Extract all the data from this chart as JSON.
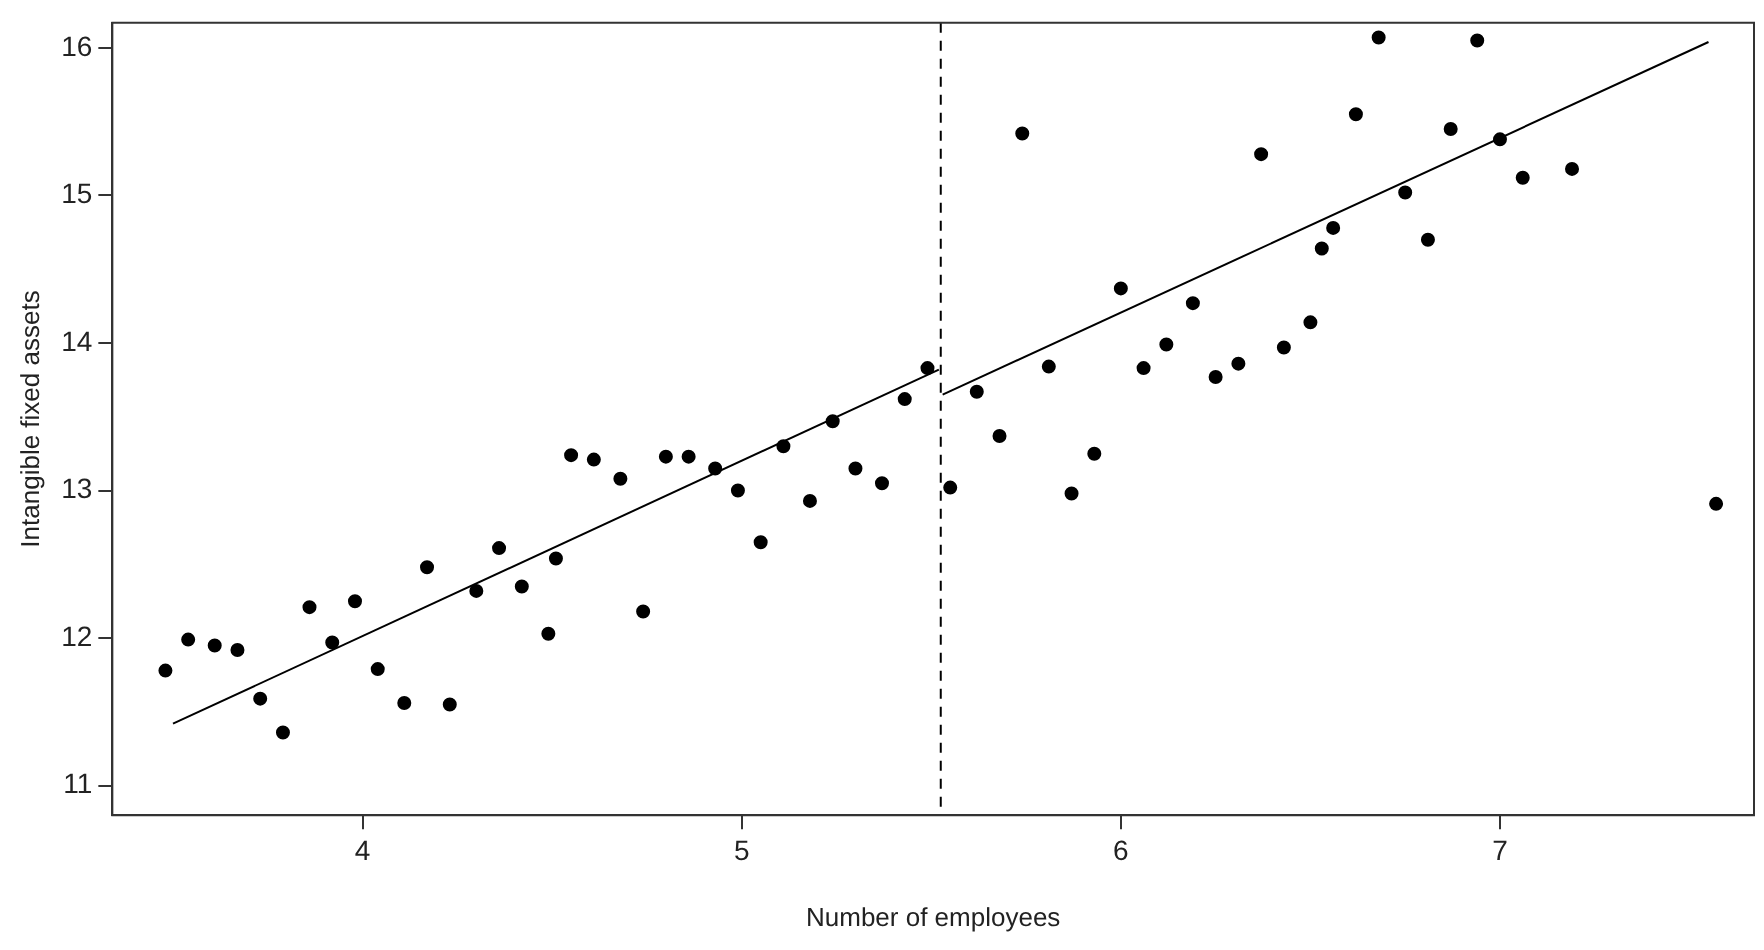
{
  "chart_data": {
    "type": "scatter",
    "xlabel": "Number of employees",
    "ylabel": "Intangible fixed assets",
    "xlim": [
      3.34,
      7.67
    ],
    "ylim": [
      10.8,
      16.17
    ],
    "xticks": [
      4,
      5,
      6,
      7
    ],
    "yticks": [
      11,
      12,
      13,
      14,
      15,
      16
    ],
    "grid": false,
    "legend": false,
    "marker": "circle",
    "series": [
      {
        "color": "#000000",
        "x": [
          3.48,
          3.54,
          3.61,
          3.67,
          3.73,
          3.79,
          3.86,
          3.92,
          3.98,
          4.04,
          4.11,
          4.17,
          4.23,
          4.3,
          4.36,
          4.42,
          4.49,
          4.51,
          4.55,
          4.61,
          4.68,
          4.74,
          4.8,
          4.86,
          4.93,
          4.99,
          5.05,
          5.11,
          5.18,
          5.24,
          5.3,
          5.37,
          5.43,
          5.49,
          5.55,
          5.62,
          5.68,
          5.74,
          5.81,
          5.87,
          5.93,
          6.0,
          6.06,
          6.12,
          6.19,
          6.25,
          6.31,
          6.37,
          6.43,
          6.5,
          6.53,
          6.56,
          6.62,
          6.68,
          6.75,
          6.81,
          6.87,
          6.94,
          7.0,
          7.06,
          7.19,
          7.57
        ],
        "values": [
          11.78,
          11.99,
          11.95,
          11.92,
          11.59,
          11.36,
          12.21,
          11.97,
          12.25,
          11.79,
          11.56,
          12.48,
          11.55,
          12.32,
          12.61,
          12.35,
          12.03,
          12.54,
          13.24,
          13.21,
          13.08,
          12.18,
          13.23,
          13.23,
          13.15,
          13.0,
          12.65,
          13.3,
          12.93,
          13.47,
          13.15,
          13.05,
          13.62,
          13.83,
          13.02,
          13.67,
          13.37,
          15.42,
          13.84,
          12.98,
          13.25,
          14.37,
          13.83,
          13.99,
          14.27,
          13.77,
          13.86,
          15.28,
          13.97,
          14.14,
          14.64,
          14.78,
          15.55,
          16.07,
          15.02,
          14.7,
          15.45,
          16.05,
          15.38,
          15.12,
          15.18,
          12.91
        ]
      },
      {
        "type": "line",
        "color": "#000000",
        "marker": "none",
        "line_style": "solid",
        "x": [
          3.5,
          5.52
        ],
        "values": [
          11.42,
          13.82
        ]
      },
      {
        "type": "line",
        "color": "#000000",
        "marker": "none",
        "line_style": "solid",
        "x": [
          5.53,
          7.55
        ],
        "values": [
          13.65,
          16.04
        ]
      }
    ],
    "ref_lines": [
      {
        "axis": "x",
        "value": 5.525,
        "color": "#000000",
        "line_style": "dashed"
      }
    ]
  }
}
